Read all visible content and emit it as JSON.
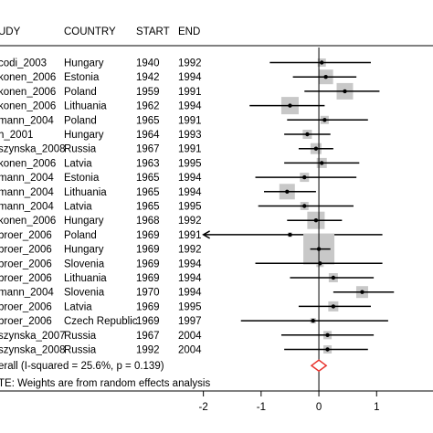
{
  "chart_data": {
    "type": "forest",
    "headers": {
      "study": "UDY",
      "country": "COUNTRY",
      "start": "START",
      "end": "END"
    },
    "rows": [
      {
        "study": "codi_2003",
        "country": "Hungary",
        "start": "1940",
        "end": "1992",
        "est": 0.05,
        "lo": -0.85,
        "hi": 0.9,
        "w": 9
      },
      {
        "study": "konen_2006",
        "country": "Estonia",
        "start": "1942",
        "end": "1994",
        "est": 0.12,
        "lo": -0.45,
        "hi": 0.65,
        "w": 16
      },
      {
        "study": "konen_2006",
        "country": "Poland",
        "start": "1959",
        "end": "1991",
        "est": 0.45,
        "lo": -0.25,
        "hi": 1.05,
        "w": 18
      },
      {
        "study": "konen_2006",
        "country": "Lithuania",
        "start": "1962",
        "end": "1994",
        "est": -0.5,
        "lo": -1.2,
        "hi": 0.1,
        "w": 19
      },
      {
        "study": "mann_2004",
        "country": "Poland",
        "start": "1965",
        "end": "1991",
        "est": 0.1,
        "lo": -0.55,
        "hi": 0.85,
        "w": 9
      },
      {
        "study": "h_2001",
        "country": "Hungary",
        "start": "1964",
        "end": "1993",
        "est": -0.2,
        "lo": -0.6,
        "hi": 0.2,
        "w": 10
      },
      {
        "study": "szynska_2008",
        "country": "Russia",
        "start": "1967",
        "end": "1991",
        "est": -0.05,
        "lo": -0.35,
        "hi": 0.25,
        "w": 12
      },
      {
        "study": "konen_2006",
        "country": "Latvia",
        "start": "1963",
        "end": "1995",
        "est": 0.05,
        "lo": -0.6,
        "hi": 0.7,
        "w": 11
      },
      {
        "study": "mann_2004",
        "country": "Estonia",
        "start": "1965",
        "end": "1994",
        "est": -0.25,
        "lo": -1.1,
        "hi": 0.65,
        "w": 10
      },
      {
        "study": "mann_2004",
        "country": "Lithuania",
        "start": "1965",
        "end": "1994",
        "est": -0.55,
        "lo": -0.95,
        "hi": -0.05,
        "w": 17
      },
      {
        "study": "mann_2004",
        "country": "Latvia",
        "start": "1965",
        "end": "1995",
        "est": -0.25,
        "lo": -1.05,
        "hi": 0.6,
        "w": 9
      },
      {
        "study": "konen_2006",
        "country": "Hungary",
        "start": "1968",
        "end": "1992",
        "est": -0.05,
        "lo": -0.55,
        "hi": 0.4,
        "w": 19
      },
      {
        "study": "broer_2006",
        "country": "Poland",
        "start": "1969",
        "end": "1991",
        "est": -0.5,
        "lo": -2.0,
        "hi": 1.1,
        "w": 5,
        "arrow_left": true
      },
      {
        "study": "broer_2006",
        "country": "Hungary",
        "start": "1969",
        "end": "1992",
        "est": 0.0,
        "lo": -0.15,
        "hi": 0.2,
        "w": 34
      },
      {
        "study": "broer_2006",
        "country": "Slovenia",
        "start": "1969",
        "end": "1994",
        "est": 0.02,
        "lo": -1.1,
        "hi": 1.1,
        "w": 8
      },
      {
        "study": "broer_2006",
        "country": "Lithuania",
        "start": "1969",
        "end": "1994",
        "est": 0.25,
        "lo": -0.5,
        "hi": 0.95,
        "w": 10
      },
      {
        "study": "mann_2004",
        "country": "Slovenia",
        "start": "1970",
        "end": "1994",
        "est": 0.75,
        "lo": 0.25,
        "hi": 1.3,
        "w": 13
      },
      {
        "study": "broer_2006",
        "country": "Latvia",
        "start": "1969",
        "end": "1995",
        "est": 0.25,
        "lo": -0.35,
        "hi": 0.9,
        "w": 11
      },
      {
        "study": "broer_2006",
        "country": "Czech Republic",
        "start": "1969",
        "end": "1997",
        "est": -0.1,
        "lo": -1.35,
        "hi": 1.2,
        "w": 6
      },
      {
        "study": "szynska_2007",
        "country": "Russia",
        "start": "1967",
        "end": "2004",
        "est": 0.15,
        "lo": -0.65,
        "hi": 0.95,
        "w": 9
      },
      {
        "study": "szynska_2008",
        "country": "Russia",
        "start": "1992",
        "end": "2004",
        "est": 0.15,
        "lo": -0.6,
        "hi": 0.85,
        "w": 9
      }
    ],
    "overall": {
      "label": "erall  (I-squared = 25.6%, p = 0.139)",
      "est": 0.0,
      "lo": -0.08,
      "hi": 0.08,
      "color": "#e8322c"
    },
    "note": "TE: Weights are from random effects analysis",
    "xticks": [
      -2,
      -1,
      0,
      1
    ],
    "xtick_labels": [
      "-2",
      "-1",
      "0",
      "1"
    ],
    "xlim": [
      -2.2,
      1.85
    ],
    "null_line": 0,
    "colors": {
      "box": "#c8c8c8",
      "line": "#000000",
      "diamond": "#e8322c"
    }
  }
}
